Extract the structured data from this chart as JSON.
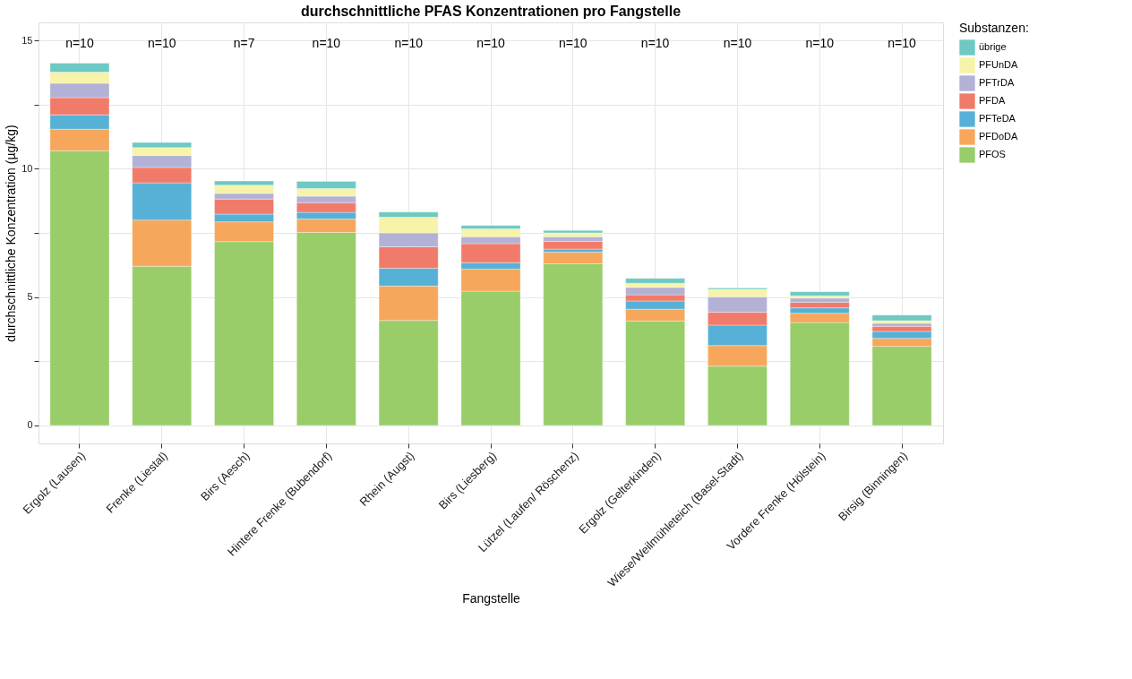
{
  "chart_data": {
    "type": "bar",
    "stacked": true,
    "title": "durchschnittliche PFAS Konzentrationen pro Fangstelle",
    "xlabel": "Fangstelle",
    "ylabel": "durchschnittliche Konzentration (µg/kg)",
    "legend_title": "Substanzen:",
    "categories": [
      "Ergolz (Lausen)",
      "Frenke (Liestal)",
      "Birs (Aesch)",
      "Hintere Frenke (Bubendorf)",
      "Rhein (Augst)",
      "Birs (Liesberg)",
      "Lützel (Laufen/ Röschenz)",
      "Ergolz (Gelterkinden)",
      "Wiese/Weilmühleteich (Basel-Stadt)",
      "Vordere Frenke (Hölstein)",
      "Birsig (Binningen)"
    ],
    "series": [
      {
        "name": "PFOS",
        "color": "#98cd6a",
        "values": [
          10.7,
          6.2,
          7.16,
          7.52,
          4.09,
          5.23,
          6.3,
          4.07,
          2.31,
          4.01,
          3.08
        ]
      },
      {
        "name": "PFDoDA",
        "color": "#f6a75c",
        "values": [
          0.84,
          1.8,
          0.77,
          0.52,
          1.34,
          0.86,
          0.45,
          0.46,
          0.8,
          0.36,
          0.31
        ]
      },
      {
        "name": "PFTeDA",
        "color": "#57b1d6",
        "values": [
          0.56,
          1.45,
          0.3,
          0.26,
          0.69,
          0.25,
          0.12,
          0.32,
          0.8,
          0.21,
          0.27
        ]
      },
      {
        "name": "PFDA",
        "color": "#f17b6a",
        "values": [
          0.67,
          0.6,
          0.59,
          0.38,
          0.84,
          0.74,
          0.3,
          0.24,
          0.5,
          0.22,
          0.2
        ]
      },
      {
        "name": "PFTrDA",
        "color": "#b3b1d6",
        "values": [
          0.56,
          0.47,
          0.22,
          0.25,
          0.54,
          0.27,
          0.18,
          0.29,
          0.6,
          0.16,
          0.12
        ]
      },
      {
        "name": "PFUnDA",
        "color": "#f7f3a8",
        "values": [
          0.43,
          0.3,
          0.32,
          0.3,
          0.61,
          0.31,
          0.15,
          0.16,
          0.29,
          0.09,
          0.1
        ]
      },
      {
        "name": "übrige",
        "color": "#6dc9c1",
        "values": [
          0.35,
          0.2,
          0.16,
          0.28,
          0.2,
          0.13,
          0.1,
          0.19,
          0.05,
          0.16,
          0.22
        ]
      }
    ],
    "ylim": [
      -0.7,
      15.7
    ],
    "yticks": [
      0,
      {
        "value": 2.5,
        "label": null
      },
      5,
      {
        "value": 7.5,
        "label": null
      },
      10,
      {
        "value": 12.5,
        "label": null
      },
      15
    ],
    "grid": true,
    "legend": "right",
    "annotations": [
      "n=10",
      "n=10",
      "n=7",
      "n=10",
      "n=10",
      "n=10",
      "n=10",
      "n=10",
      "n=10",
      "n=10",
      "n=10"
    ]
  }
}
